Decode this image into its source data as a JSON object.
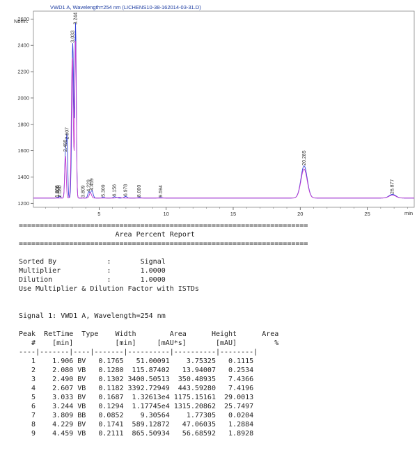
{
  "chart_data": {
    "type": "line",
    "title": "VWD1 A, Wavelength=254 nm (LICHENS10-38-162014-03-31.D)",
    "ylabel": "Norm.",
    "xlabel": "min",
    "xlim": [
      0.1,
      28.5
    ],
    "ylim": [
      1170,
      2660
    ],
    "x_ticks": [
      5,
      10,
      15,
      20,
      25
    ],
    "y_ticks": [
      1200,
      1400,
      1600,
      1800,
      2000,
      2200,
      2400,
      2600
    ],
    "baseline": 1240,
    "series": [
      {
        "type": "line",
        "color": "#2f3fd6",
        "points": [
          {
            "rt": 1.866,
            "height": 3.2,
            "width": 0.08
          },
          {
            "rt": 1.906,
            "height": 3.75,
            "width": 0.1765
          },
          {
            "rt": 2.08,
            "height": 13.94,
            "width": 0.128
          },
          {
            "rt": 2.49,
            "height": 350.49,
            "width": 0.1302
          },
          {
            "rt": 2.607,
            "height": 443.59,
            "width": 0.1182
          },
          {
            "rt": 3.033,
            "height": 1175.15,
            "width": 0.1687
          },
          {
            "rt": 3.244,
            "height": 1315.21,
            "width": 0.1294
          },
          {
            "rt": 3.809,
            "height": 1.77,
            "width": 0.0852
          },
          {
            "rt": 4.229,
            "height": 47.06,
            "width": 0.1741
          },
          {
            "rt": 4.459,
            "height": 56.69,
            "width": 0.2111
          },
          {
            "rt": 5.309,
            "height": 8.0,
            "width": 0.2
          },
          {
            "rt": 6.156,
            "height": 10.0,
            "width": 0.25
          },
          {
            "rt": 6.978,
            "height": 12.0,
            "width": 0.25
          },
          {
            "rt": 8.0,
            "height": 6.0,
            "width": 0.25
          },
          {
            "rt": 9.594,
            "height": 4.0,
            "width": 0.3
          },
          {
            "rt": 20.285,
            "height": 245.0,
            "width": 0.55
          },
          {
            "rt": 26.877,
            "height": 28.0,
            "width": 0.6
          }
        ]
      },
      {
        "type": "line",
        "color": "#c43ad1",
        "points": [
          {
            "rt": 2.49,
            "height": 320.0,
            "width": 0.13
          },
          {
            "rt": 3.0,
            "height": 1070.0,
            "width": 0.17
          },
          {
            "rt": 3.244,
            "height": 1190.0,
            "width": 0.13
          },
          {
            "rt": 4.35,
            "height": 40.0,
            "width": 0.2
          },
          {
            "rt": 6.5,
            "height": 6.0,
            "width": 0.3
          },
          {
            "rt": 20.285,
            "height": 220.0,
            "width": 0.55
          },
          {
            "rt": 26.877,
            "height": 22.0,
            "width": 0.6
          }
        ]
      }
    ],
    "peak_labels": [
      {
        "text": "1.866",
        "rt": 1.866,
        "y": 1245
      },
      {
        "text": "1.906",
        "rt": 1.906,
        "y": 1245
      },
      {
        "text": "2.080",
        "rt": 2.08,
        "y": 1245
      },
      {
        "text": "2.490",
        "rt": 2.49,
        "y": 1592
      },
      {
        "text": "2.607",
        "rt": 2.607,
        "y": 1685
      },
      {
        "text": "3.033",
        "rt": 3.033,
        "y": 2420
      },
      {
        "text": "3.244",
        "rt": 3.244,
        "y": 2558
      },
      {
        "text": "3.809",
        "rt": 3.809,
        "y": 1245
      },
      {
        "text": "4.229",
        "rt": 4.229,
        "y": 1288
      },
      {
        "text": "4.459",
        "rt": 4.459,
        "y": 1298
      },
      {
        "text": "5.309",
        "rt": 5.309,
        "y": 1250
      },
      {
        "text": "6.156",
        "rt": 6.156,
        "y": 1252
      },
      {
        "text": "6.978",
        "rt": 6.978,
        "y": 1254
      },
      {
        "text": "8.000",
        "rt": 8.0,
        "y": 1248
      },
      {
        "text": "9.594",
        "rt": 9.594,
        "y": 1246
      },
      {
        "text": "20.285",
        "rt": 20.285,
        "y": 1488
      },
      {
        "text": "26.877",
        "rt": 26.877,
        "y": 1270
      }
    ]
  },
  "report": {
    "separator": "=====================================================================",
    "title": "Area Percent Report",
    "settings": [
      {
        "label": "Sorted By",
        "value": "Signal"
      },
      {
        "label": "Multiplier",
        "value": "1.0000"
      },
      {
        "label": "Dilution",
        "value": "1.0000"
      }
    ],
    "note": "Use Multiplier & Dilution Factor with ISTDs",
    "signal_line": "Signal 1: VWD1 A, Wavelength=254 nm",
    "header1": [
      "Peak",
      "RetTime",
      "Type",
      "Width",
      "Area",
      "Height",
      "Area"
    ],
    "header2": [
      "#",
      "[min]",
      "",
      "[min]",
      "[mAU*s]",
      "[mAU]",
      "%"
    ],
    "divider": "----|-------|----|-------|----------|----------|--------|",
    "rows": [
      [
        "1",
        "1.906",
        "BV",
        "0.1765",
        "51.00091",
        "3.75325",
        "0.1115"
      ],
      [
        "2",
        "2.080",
        "VB",
        "0.1280",
        "115.87402",
        "13.94007",
        "0.2534"
      ],
      [
        "3",
        "2.490",
        "BV",
        "0.1302",
        "3400.50513",
        "350.48935",
        "7.4366"
      ],
      [
        "4",
        "2.607",
        "VB",
        "0.1182",
        "3392.72949",
        "443.59280",
        "7.4196"
      ],
      [
        "5",
        "3.033",
        "BV",
        "0.1687",
        "1.32613e4",
        "1175.15161",
        "29.0013"
      ],
      [
        "6",
        "3.244",
        "VB",
        "0.1294",
        "1.17745e4",
        "1315.20862",
        "25.7497"
      ],
      [
        "7",
        "3.809",
        "BB",
        "0.0852",
        "9.30564",
        "1.77305",
        "0.0204"
      ],
      [
        "8",
        "4.229",
        "BV",
        "0.1741",
        "589.12872",
        "47.06035",
        "1.2884"
      ],
      [
        "9",
        "4.459",
        "VB",
        "0.2111",
        "865.50934",
        "56.68592",
        "1.8928"
      ]
    ]
  }
}
